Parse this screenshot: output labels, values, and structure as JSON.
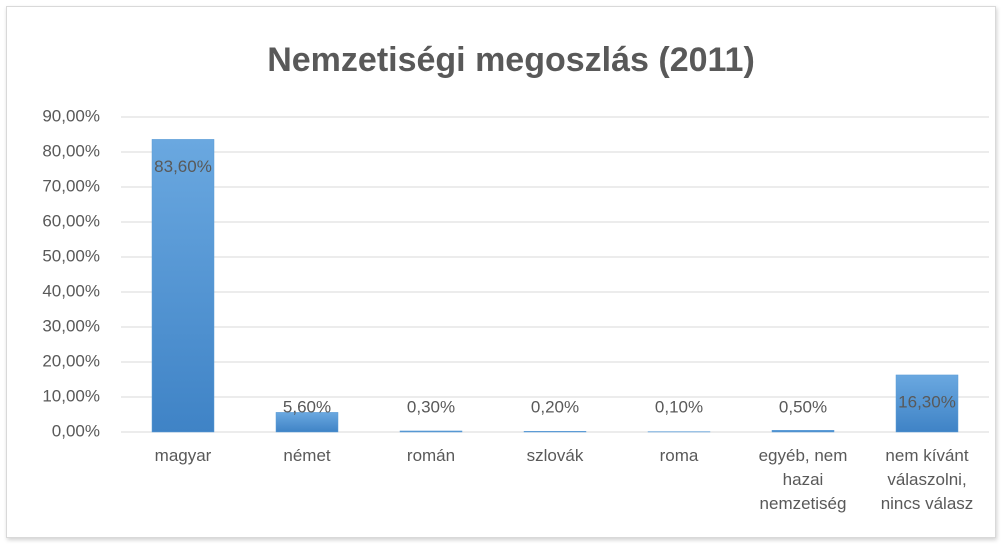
{
  "chart_data": {
    "type": "bar",
    "title": "Nemzetiségi megoszlás (2011)",
    "categories": [
      "magyar",
      "német",
      "román",
      "szlovák",
      "roma",
      "egyéb, nem hazai nemzetiség",
      "nem kívánt válaszolni, nincs válasz"
    ],
    "values": [
      83.6,
      5.6,
      0.3,
      0.2,
      0.1,
      0.5,
      16.3
    ],
    "value_labels": [
      "83,60%",
      "5,60%",
      "0,30%",
      "0,20%",
      "0,10%",
      "0,50%",
      "16,30%"
    ],
    "color": "#5b9bd5",
    "ylim": [
      0,
      90
    ],
    "yticks": [
      {
        "value": 0,
        "label": "0,00%"
      },
      {
        "value": 10,
        "label": "10,00%"
      },
      {
        "value": 20,
        "label": "20,00%"
      },
      {
        "value": 30,
        "label": "30,00%"
      },
      {
        "value": 40,
        "label": "40,00%"
      },
      {
        "value": 50,
        "label": "50,00%"
      },
      {
        "value": 60,
        "label": "60,00%"
      },
      {
        "value": 70,
        "label": "70,00%"
      },
      {
        "value": 80,
        "label": "80,00%"
      },
      {
        "value": 90,
        "label": "90,00%"
      }
    ],
    "grid": true
  }
}
